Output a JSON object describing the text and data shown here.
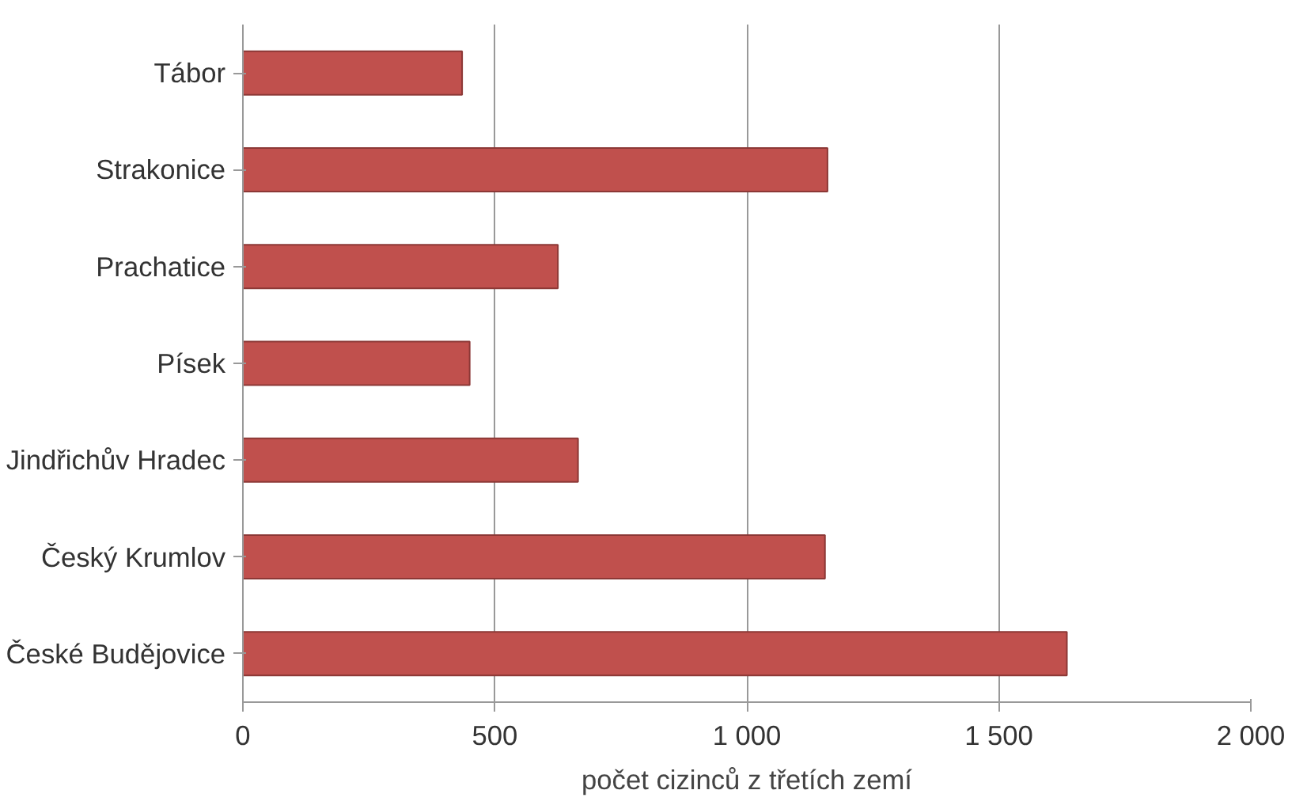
{
  "chart_data": {
    "type": "bar",
    "orientation": "horizontal",
    "xlabel": "počet cizinců z třetích zemí",
    "categories": [
      "Tábor",
      "Strakonice",
      "Prachatice",
      "Písek",
      "Jindřichův Hradec",
      "Český Krumlov",
      "České Budějovice"
    ],
    "values": [
      435,
      1160,
      625,
      450,
      665,
      1155,
      1635
    ],
    "color": "#c0504d",
    "xlim": [
      0,
      2000
    ],
    "xticks": [
      0,
      500,
      {
        "value": 1000,
        "label": "1 000"
      },
      {
        "value": 1500,
        "label": "1 500"
      },
      {
        "value": 2000,
        "label": "2 000"
      }
    ],
    "grid": "x"
  }
}
